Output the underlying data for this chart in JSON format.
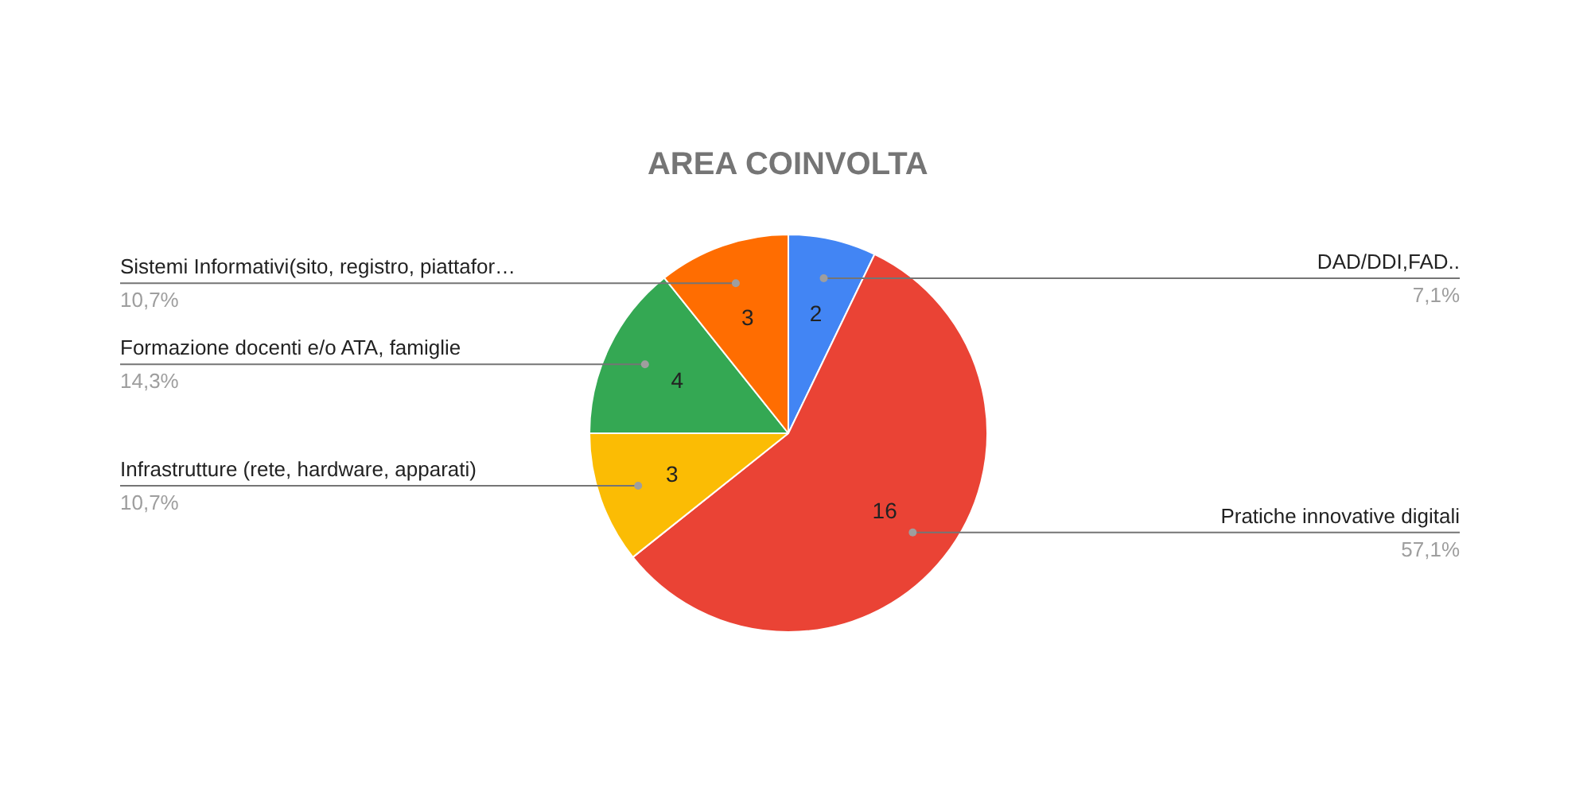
{
  "chart_data": {
    "type": "pie",
    "title": "AREA COINVOLTA",
    "categories": [
      "DAD/DDI,FAD..",
      "Pratiche innovative digitali",
      "Infrastrutture (rete, hardware, apparati)",
      "Formazione docenti e/o ATA, famiglie",
      "Sistemi Informativi(sito, registro, piattafor…"
    ],
    "values": [
      2,
      16,
      3,
      4,
      3
    ],
    "colors": [
      "#4285f4",
      "#ea4335",
      "#fbbc04",
      "#34a853",
      "#ff6d01"
    ],
    "data_labels": true,
    "annotations": [
      "7,1%",
      "57,1%",
      "10,7%",
      "14,3%",
      "10,7%"
    ]
  }
}
